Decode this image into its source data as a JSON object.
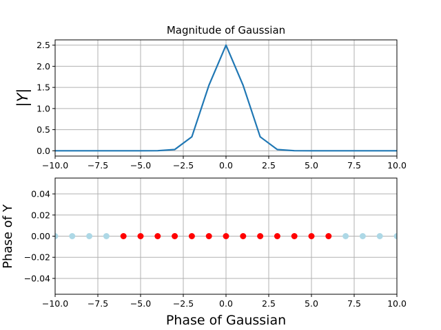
{
  "chart_data": [
    {
      "type": "line",
      "title": "Magnitude of Gaussian",
      "xlabel": "",
      "ylabel": "|Y|",
      "xlim": [
        -10,
        10
      ],
      "ylim": [
        -0.125,
        2.625
      ],
      "grid": true,
      "x_ticks": [
        "−10.0",
        "−7.5",
        "−5.0",
        "−2.5",
        "0.0",
        "2.5",
        "5.0",
        "7.5",
        "10.0"
      ],
      "y_ticks": [
        "0.0",
        "0.5",
        "1.0",
        "1.5",
        "2.0",
        "2.5"
      ],
      "colors": {
        "line": "#1f77b4"
      },
      "series": [
        {
          "x": [
            -10,
            -9,
            -8,
            -7,
            -6,
            -5,
            -4,
            -3,
            -2,
            -1,
            0,
            1,
            2,
            3,
            4,
            5,
            6,
            7,
            8,
            9,
            10
          ],
          "values": [
            0,
            0,
            0,
            0,
            0,
            0,
            0.002,
            0.03,
            0.33,
            1.55,
            2.5,
            1.55,
            0.33,
            0.03,
            0.002,
            0,
            0,
            0,
            0,
            0,
            0
          ]
        }
      ]
    },
    {
      "type": "scatter",
      "title": "",
      "xlabel": "Phase of Gaussian",
      "ylabel": "Phase of Y",
      "xlim": [
        -10,
        10
      ],
      "ylim": [
        -0.055,
        0.055
      ],
      "grid": true,
      "x_ticks": [
        "−10.0",
        "−7.5",
        "−5.0",
        "−2.5",
        "0.0",
        "2.5",
        "5.0",
        "7.5",
        "10.0"
      ],
      "y_ticks": [
        "−0.04",
        "−0.02",
        "0.00",
        "0.02",
        "0.04"
      ],
      "colors": {
        "light": "#add8e6",
        "highlight": "#ff0000"
      },
      "series": [
        {
          "x": [
            -10,
            -9,
            -8,
            -7,
            7,
            8,
            9,
            10
          ],
          "values": [
            0,
            0,
            0,
            0,
            0,
            0,
            0,
            0
          ],
          "color": "#add8e6"
        },
        {
          "x": [
            -6,
            -5,
            -4,
            -3,
            -2,
            -1,
            0,
            1,
            2,
            3,
            4,
            5,
            6
          ],
          "values": [
            0,
            0,
            0,
            0,
            0,
            0,
            0,
            0,
            0,
            0,
            0,
            0,
            0
          ],
          "color": "#ff0000"
        }
      ]
    }
  ]
}
